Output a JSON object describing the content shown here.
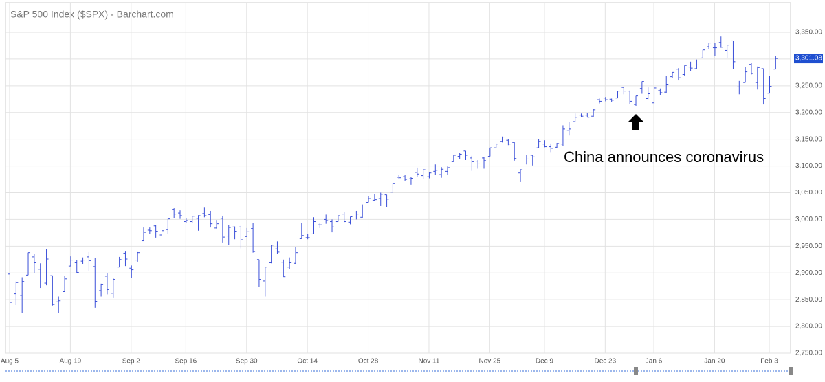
{
  "chart_data": {
    "type": "ohlc",
    "title": "S&P 500 Index ($SPX) - Barchart.com",
    "annotation": "China announces coronavirus",
    "color": "#3a4fd8",
    "grid": true,
    "categories": [
      "Aug 5",
      null,
      null,
      null,
      null,
      null,
      null,
      null,
      null,
      null,
      "Aug 19",
      null,
      null,
      null,
      null,
      null,
      null,
      null,
      null,
      null,
      "Sep 2",
      null,
      null,
      null,
      null,
      null,
      null,
      null,
      null,
      "Sep 16",
      null,
      null,
      null,
      null,
      null,
      null,
      null,
      null,
      null,
      "Sep 30",
      null,
      null,
      null,
      null,
      null,
      null,
      null,
      null,
      null,
      "Oct 14",
      null,
      null,
      null,
      null,
      null,
      null,
      null,
      null,
      null,
      "Oct 28",
      null,
      null,
      null,
      null,
      null,
      null,
      null,
      null,
      null,
      "Nov 11",
      null,
      null,
      null,
      null,
      null,
      null,
      null,
      null,
      null,
      "Nov 25",
      null,
      null,
      null,
      null,
      null,
      null,
      null,
      null,
      "Dec 9",
      null,
      null,
      null,
      null,
      null,
      null,
      null,
      null,
      null,
      "Dec 23",
      null,
      null,
      null,
      null,
      null,
      null,
      null,
      "Jan 6",
      null,
      null,
      null,
      null,
      null,
      null,
      null,
      null,
      null,
      "Jan 20",
      null,
      null,
      null,
      null,
      null,
      null,
      null,
      null,
      "Feb 3",
      null
    ],
    "open": [
      2898,
      2861,
      2858,
      2896,
      2930,
      2907,
      2881,
      2895,
      2846,
      2865,
      2913,
      2919,
      2922,
      2930,
      2912,
      2867,
      2894,
      2862,
      2911,
      2937,
      2909,
      2924,
      2960,
      2980,
      2988,
      2971,
      2981,
      3019,
      3012,
      2996,
      2996,
      3002,
      3011,
      3009,
      2984,
      3002,
      2969,
      2986,
      2986,
      2968,
      2983,
      2925,
      2885,
      2919,
      2945,
      2920,
      2911,
      2918,
      2964,
      2966,
      2973,
      2990,
      3000,
      2996,
      2996,
      3010,
      2995,
      3014,
      3004,
      3032,
      3036,
      3039,
      3046,
      3051,
      3079,
      3080,
      3076,
      3088,
      3082,
      3080,
      3090,
      3084,
      3090,
      3108,
      3118,
      3128,
      3115,
      3109,
      3115,
      3118,
      3134,
      3146,
      3148,
      3144,
      3087,
      3104,
      3120,
      3134,
      3141,
      3136,
      3135,
      3141,
      3166,
      3183,
      3195,
      3195,
      3193,
      3224,
      3227,
      3225,
      3227,
      3247,
      3240,
      3215,
      3245,
      3226,
      3218,
      3241,
      3238,
      3267,
      3281,
      3271,
      3285,
      3282,
      3302,
      3323,
      3321,
      3331,
      3316,
      3334,
      3248,
      3256,
      3290,
      3256,
      3282,
      3236,
      3281
    ],
    "high": [
      2898,
      2884,
      2892,
      2938,
      2935,
      2918,
      2944,
      2895,
      2856,
      2894,
      2931,
      2924,
      2929,
      2939,
      2928,
      2880,
      2899,
      2891,
      2930,
      2940,
      2914,
      2939,
      2985,
      2985,
      2990,
      2980,
      3001,
      3021,
      3017,
      3003,
      3007,
      3008,
      3022,
      3016,
      2999,
      3007,
      2990,
      2987,
      2988,
      2984,
      2993,
      2925,
      2911,
      2953,
      2959,
      2925,
      2929,
      2948,
      2993,
      2973,
      3004,
      2994,
      3009,
      3000,
      3007,
      3014,
      3005,
      3016,
      3028,
      3044,
      3047,
      3050,
      3046,
      3067,
      3084,
      3084,
      3079,
      3097,
      3094,
      3088,
      3103,
      3098,
      3099,
      3121,
      3125,
      3128,
      3119,
      3111,
      3117,
      3134,
      3142,
      3155,
      3150,
      3145,
      3094,
      3120,
      3120,
      3150,
      3148,
      3142,
      3143,
      3176,
      3182,
      3198,
      3198,
      3199,
      3206,
      3226,
      3229,
      3226,
      3240,
      3248,
      3241,
      3231,
      3258,
      3247,
      3247,
      3245,
      3268,
      3275,
      3283,
      3288,
      3295,
      3299,
      3317,
      3330,
      3330,
      3342,
      3326,
      3334,
      3259,
      3285,
      3293,
      3286,
      3282,
      3268,
      3306
    ],
    "low": [
      2822,
      2840,
      2825,
      2896,
      2900,
      2872,
      2877,
      2839,
      2825,
      2865,
      2913,
      2900,
      2917,
      2904,
      2835,
      2856,
      2860,
      2853,
      2911,
      2913,
      2891,
      2921,
      2960,
      2973,
      2966,
      2957,
      2973,
      3003,
      3001,
      2993,
      2994,
      2979,
      3004,
      2985,
      2983,
      2957,
      2953,
      2963,
      2946,
      2968,
      2938,
      2874,
      2856,
      2918,
      2936,
      2893,
      2907,
      2917,
      2964,
      2963,
      2973,
      2984,
      2992,
      2976,
      2996,
      2995,
      2991,
      3000,
      3002,
      3032,
      3034,
      3025,
      3023,
      3051,
      3076,
      3072,
      3065,
      3080,
      3075,
      3077,
      3084,
      3078,
      3083,
      3108,
      3113,
      3111,
      3091,
      3095,
      3095,
      3118,
      3133,
      3144,
      3139,
      3110,
      3070,
      3103,
      3101,
      3134,
      3135,
      3126,
      3133,
      3138,
      3157,
      3183,
      3191,
      3191,
      3192,
      3217,
      3221,
      3220,
      3227,
      3234,
      3216,
      3212,
      3235,
      3225,
      3215,
      3233,
      3236,
      3264,
      3260,
      3269,
      3278,
      3281,
      3302,
      3318,
      3306,
      3321,
      3302,
      3281,
      3234,
      3256,
      3271,
      3243,
      3215,
      3236,
      3281
    ],
    "close": [
      2845,
      2882,
      2884,
      2938,
      2919,
      2883,
      2926,
      2841,
      2848,
      2889,
      2924,
      2901,
      2924,
      2923,
      2847,
      2878,
      2869,
      2888,
      2925,
      2926,
      2906,
      2938,
      2976,
      2979,
      2978,
      2979,
      3001,
      3010,
      3007,
      2998,
      3006,
      3007,
      3007,
      2992,
      2992,
      2967,
      2985,
      2978,
      2962,
      2977,
      2940,
      2888,
      2911,
      2952,
      2939,
      2893,
      2919,
      2938,
      2970,
      2966,
      2996,
      2990,
      2998,
      2986,
      3007,
      2996,
      3005,
      3010,
      3023,
      3039,
      3037,
      3047,
      3038,
      3067,
      3078,
      3075,
      3077,
      3085,
      3093,
      3087,
      3092,
      3094,
      3097,
      3120,
      3122,
      3120,
      3108,
      3104,
      3110,
      3134,
      3141,
      3154,
      3141,
      3114,
      3093,
      3113,
      3117,
      3146,
      3136,
      3133,
      3142,
      3169,
      3169,
      3191,
      3193,
      3191,
      3205,
      3221,
      3224,
      3223,
      3240,
      3240,
      3221,
      3231,
      3258,
      3235,
      3246,
      3237,
      3253,
      3275,
      3265,
      3288,
      3283,
      3289,
      3317,
      3330,
      3321,
      3322,
      3326,
      3295,
      3244,
      3276,
      3273,
      3284,
      3226,
      3249,
      3301.08
    ],
    "price_marker": {
      "value": 3301.08,
      "label": "3,301.08"
    },
    "ylim": [
      2750,
      3350
    ],
    "yticks": [
      {
        "value": 2750,
        "label": "2,750.00"
      },
      {
        "value": 2800,
        "label": "2,800.00"
      },
      {
        "value": 2850,
        "label": "2,850.00"
      },
      {
        "value": 2900,
        "label": "2,900.00"
      },
      {
        "value": 2950,
        "label": "2,950.00"
      },
      {
        "value": 3000,
        "label": "3,000.00"
      },
      {
        "value": 3050,
        "label": "3,050.00"
      },
      {
        "value": 3100,
        "label": "3,100.00"
      },
      {
        "value": 3150,
        "label": "3,150.00"
      },
      {
        "value": 3200,
        "label": "3,200.00"
      },
      {
        "value": 3250,
        "label": "3,250.00"
      },
      {
        "value": 3300,
        "label": "3,300.00"
      },
      {
        "value": 3350,
        "label": "3,350.00"
      }
    ]
  }
}
